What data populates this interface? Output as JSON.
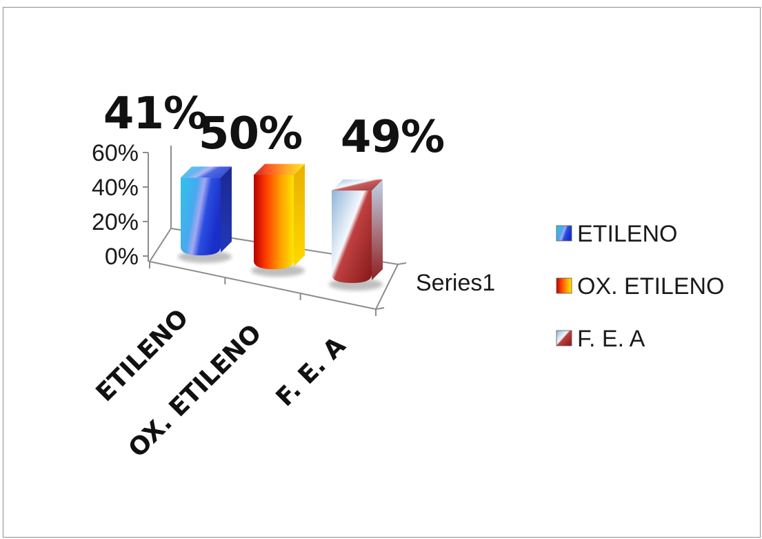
{
  "chart_data": {
    "type": "bar",
    "title": "",
    "xlabel": "",
    "ylabel": "",
    "categories": [
      "ETILENO",
      "OX. ETILENO",
      "F. E. A"
    ],
    "series_axis_label": "Series1",
    "values": [
      41,
      50,
      49
    ],
    "data_labels": [
      "41%",
      "50%",
      "49%"
    ],
    "ylim": [
      0,
      60
    ],
    "yticks": [
      0,
      20,
      40,
      60
    ],
    "ytick_labels": [
      "0%",
      "20%",
      "40%",
      "60%"
    ],
    "legend": {
      "position": "right",
      "entries": [
        "ETILENO",
        "OX. ETILENO",
        "F. E. A"
      ]
    },
    "grid": false,
    "style": "3d-cylinder-like columns with gradient fills",
    "colors": {
      "ETILENO": [
        "#1a33c8",
        "#38c8e8",
        "#9aa6f0"
      ],
      "OX. ETILENO": [
        "#b00000",
        "#ff5a00",
        "#ffe000"
      ],
      "F. E. A": [
        "#b02020",
        "#ffffff",
        "#a8c4e0"
      ]
    }
  }
}
